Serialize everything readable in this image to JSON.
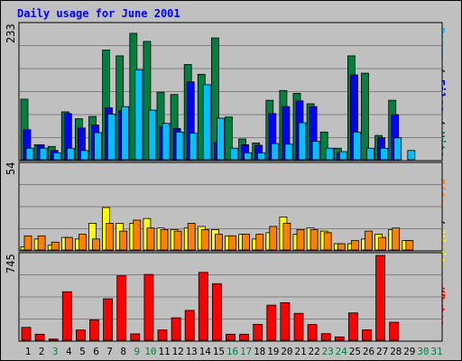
{
  "chart_data": {
    "type": "bar",
    "title": "Daily usage for June 2001",
    "categories": [
      "1",
      "2",
      "3",
      "4",
      "5",
      "6",
      "7",
      "8",
      "9",
      "10",
      "11",
      "12",
      "13",
      "14",
      "15",
      "16",
      "17",
      "18",
      "19",
      "20",
      "21",
      "22",
      "23",
      "24",
      "25",
      "26",
      "27",
      "28",
      "29",
      "30",
      "31"
    ],
    "weekend_days": [
      3,
      9,
      10,
      16,
      17,
      23,
      24,
      30,
      31
    ],
    "panels": [
      {
        "name": "requests",
        "ymax_label": "233",
        "ymax": 233,
        "series": [
          {
            "name": "Hits",
            "color": "#008040",
            "values": [
              105,
              26,
              23,
              83,
              71,
              75,
              190,
              180,
              219,
              205,
              117,
              113,
              165,
              148,
              211,
              74,
              36,
              29,
              103,
              120,
              115,
              97,
              48,
              20,
              180,
              150,
              42,
              103,
              0,
              0,
              0
            ]
          },
          {
            "name": "Files",
            "color": "#0000ff",
            "values": [
              52,
              26,
              16,
              80,
              55,
              60,
              90,
              85,
              0,
              0,
              57,
              54,
              135,
              0,
              30,
              0,
              26,
              25,
              80,
              92,
              102,
              92,
              0,
              12,
              147,
              0,
              38,
              78,
              0,
              0,
              0
            ]
          },
          {
            "name": "Pages",
            "color": "#00c0ff",
            "values": [
              20,
              20,
              12,
              20,
              16,
              47,
              79,
              92,
              156,
              86,
              63,
              48,
              46,
              130,
              72,
              20,
              12,
              12,
              28,
              27,
              64,
              32,
              20,
              14,
              48,
              20,
              20,
              38,
              16,
              0,
              0
            ]
          }
        ]
      },
      {
        "name": "visits",
        "ymax_label": "54",
        "ymax": 54,
        "series": [
          {
            "name": "Visits",
            "color": "#ffff00",
            "values": [
              2,
              7,
              3,
              8,
              7,
              17,
              27,
              17,
              17,
              20,
              14,
              13,
              14,
              15,
              13,
              9,
              10,
              7,
              11,
              21,
              10,
              14,
              12,
              4,
              4,
              7,
              10,
              13,
              6,
              0,
              0
            ]
          },
          {
            "name": "Sites",
            "color": "#ff8000",
            "values": [
              9,
              9,
              5,
              8,
              10,
              7,
              17,
              12,
              19,
              14,
              13,
              12,
              17,
              13,
              10,
              9,
              10,
              10,
              15,
              17,
              13,
              13,
              11,
              4,
              6,
              12,
              8,
              14,
              6,
              0,
              0
            ]
          }
        ]
      },
      {
        "name": "volume",
        "ymax_label": "745",
        "ymax": 745,
        "series": [
          {
            "name": "KBytes",
            "color": "#ff0000",
            "values": [
              113,
              53,
              10,
              426,
              90,
              179,
              364,
              566,
              56,
              578,
              90,
              197,
              262,
              596,
              497,
              53,
              53,
              140,
              308,
              330,
              236,
              138,
              58,
              29,
              240,
              92,
              745,
              158,
              0,
              0,
              0
            ]
          }
        ]
      }
    ],
    "right_labels": {
      "requests": [
        {
          "text": "Pages",
          "color": "#00c0ff"
        },
        {
          "text": " / ",
          "color": "#000000"
        },
        {
          "text": "Files",
          "color": "#0000ff"
        },
        {
          "text": " / ",
          "color": "#000000"
        },
        {
          "text": "Hits",
          "color": "#008040"
        }
      ],
      "visits": [
        {
          "text": "Sites",
          "color": "#ff8000"
        },
        {
          "text": " / ",
          "color": "#000000"
        },
        {
          "text": "Visits",
          "color": "#ffff00"
        }
      ],
      "volume": [
        {
          "text": "KBytes",
          "color": "#ff0000"
        }
      ]
    },
    "colors": {
      "weekday_label": "#000000",
      "weekend_label": "#008040",
      "grid": "#808080"
    }
  }
}
